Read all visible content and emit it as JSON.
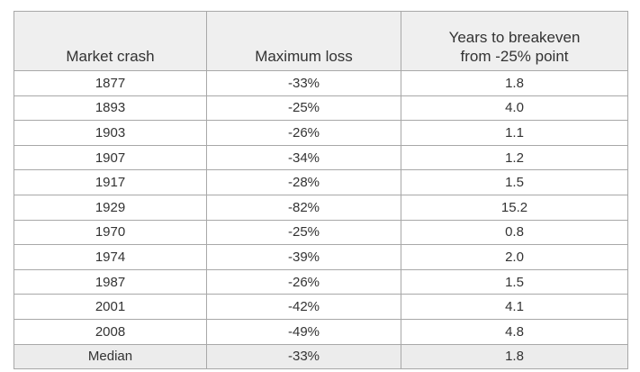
{
  "table": {
    "header": [
      "Market crash",
      "Maximum loss",
      "Years to breakeven\nfrom -25% point"
    ],
    "rows": [
      [
        "1877",
        "-33%",
        "1.8"
      ],
      [
        "1893",
        "-25%",
        "4.0"
      ],
      [
        "1903",
        "-26%",
        "1.1"
      ],
      [
        "1907",
        "-34%",
        "1.2"
      ],
      [
        "1917",
        "-28%",
        "1.5"
      ],
      [
        "1929",
        "-82%",
        "15.2"
      ],
      [
        "1970",
        "-25%",
        "0.8"
      ],
      [
        "1974",
        "-39%",
        "2.0"
      ],
      [
        "1987",
        "-26%",
        "1.5"
      ],
      [
        "2001",
        "-42%",
        "4.1"
      ],
      [
        "2008",
        "-49%",
        "4.8"
      ]
    ],
    "footer": [
      "Median",
      "-33%",
      "1.8"
    ]
  }
}
